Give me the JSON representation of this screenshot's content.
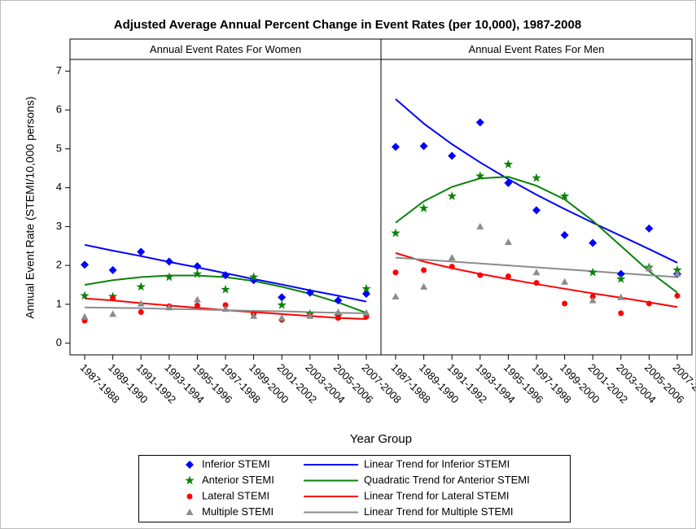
{
  "chart_data": {
    "type": "scatter",
    "title": "Adjusted Average Annual Percent Change in Event Rates (per 10,000), 1987-2008",
    "xlabel": "Year Group",
    "ylabel": "Annual Event Rate (STEMI/10,000 persons)",
    "categories": [
      "1987-1988",
      "1989-1990",
      "1991-1992",
      "1993-1994",
      "1995-1996",
      "1997-1998",
      "1999-2000",
      "2001-2002",
      "2003-2004",
      "2005-2006",
      "2007-2008"
    ],
    "ylim": [
      -0.3,
      7.3
    ],
    "yticks": [
      0,
      1,
      2,
      3,
      4,
      5,
      6,
      7
    ],
    "series": [
      {
        "name": "Inferior STEMI",
        "color": "#0000ff",
        "marker": "diamond"
      },
      {
        "name": "Anterior STEMI",
        "color": "#0a820a",
        "marker": "star"
      },
      {
        "name": "Lateral STEMI",
        "color": "#ff0000",
        "marker": "circle"
      },
      {
        "name": "Multiple STEMI",
        "color": "#8c8c8c",
        "marker": "triangle"
      },
      {
        "name": "Linear Trend for Inferior STEMI",
        "color": "#0000ff",
        "marker": "line"
      },
      {
        "name": "Quadratic Trend for Anterior STEMI",
        "color": "#0a820a",
        "marker": "line"
      },
      {
        "name": "Linear Trend for Lateral STEMI",
        "color": "#ff0000",
        "marker": "line"
      },
      {
        "name": "Linear Trend for Multiple STEMI",
        "color": "#8c8c8c",
        "marker": "line"
      }
    ],
    "panels": [
      {
        "title": "Annual Event Rates For Women",
        "values": [
          [
            2.02,
            1.88,
            2.35,
            2.1,
            1.98,
            1.75,
            1.62,
            1.18,
            1.3,
            1.1,
            1.27
          ],
          [
            1.22,
            1.2,
            1.45,
            1.7,
            1.78,
            1.38,
            1.7,
            0.98,
            0.75,
            0.7,
            1.4
          ],
          [
            0.58,
            1.15,
            0.8,
            0.95,
            0.97,
            0.98,
            0.75,
            0.6,
            0.7,
            0.65,
            0.68
          ],
          [
            0.68,
            0.75,
            1.02,
            0.92,
            1.12,
            0.88,
            0.7,
            0.65,
            0.7,
            0.8,
            0.78
          ],
          [
            2.53,
            2.38,
            2.24,
            2.09,
            1.95,
            1.8,
            1.65,
            1.51,
            1.36,
            1.22,
            1.07
          ],
          [
            1.5,
            1.62,
            1.7,
            1.74,
            1.74,
            1.7,
            1.6,
            1.45,
            1.27,
            1.05,
            0.78
          ],
          [
            1.15,
            1.1,
            1.03,
            0.97,
            0.91,
            0.85,
            0.8,
            0.75,
            0.7,
            0.65,
            0.62
          ],
          [
            0.92,
            0.91,
            0.9,
            0.88,
            0.87,
            0.85,
            0.83,
            0.82,
            0.8,
            0.78,
            0.77
          ]
        ]
      },
      {
        "title": "Annual Event Rates For Men",
        "values": [
          [
            5.05,
            5.07,
            4.82,
            5.68,
            4.12,
            3.42,
            2.78,
            2.58,
            1.78,
            2.95,
            1.78
          ],
          [
            2.83,
            3.47,
            3.78,
            4.3,
            4.6,
            4.25,
            3.78,
            1.82,
            1.65,
            1.95,
            1.88
          ],
          [
            1.82,
            1.88,
            1.97,
            1.75,
            1.72,
            1.55,
            1.02,
            1.2,
            0.77,
            1.02,
            1.22
          ],
          [
            1.2,
            1.45,
            2.2,
            3.0,
            2.6,
            1.82,
            1.58,
            1.1,
            1.18,
            1.92,
            1.78
          ],
          [
            6.28,
            5.65,
            5.12,
            4.65,
            4.22,
            3.82,
            3.45,
            3.1,
            2.76,
            2.42,
            2.07
          ],
          [
            3.1,
            3.65,
            4.02,
            4.24,
            4.28,
            4.05,
            3.7,
            3.15,
            2.5,
            1.85,
            1.3
          ],
          [
            2.32,
            2.1,
            1.93,
            1.78,
            1.65,
            1.52,
            1.4,
            1.28,
            1.17,
            1.05,
            0.93
          ],
          [
            2.2,
            2.15,
            2.1,
            2.05,
            2.0,
            1.95,
            1.9,
            1.85,
            1.8,
            1.75,
            1.7
          ]
        ]
      }
    ]
  }
}
